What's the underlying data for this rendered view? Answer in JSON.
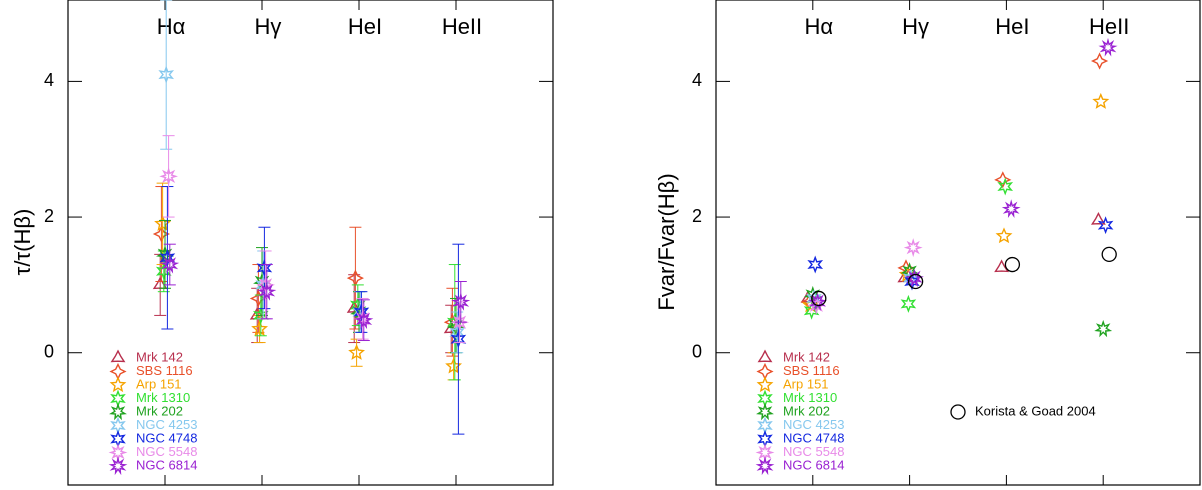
{
  "chart_data": [
    {
      "type": "scatter",
      "ylabel": "τ/τ(Hβ)",
      "categories": [
        "Hα",
        "Hγ",
        "HeI",
        "HeII"
      ],
      "ylim": [
        -1.95,
        5.2
      ],
      "yticks": [
        0,
        2,
        4
      ],
      "series": [
        {
          "name": "Mrk 142",
          "color": "#b8304e",
          "marker": "star3",
          "values": [
            1.0,
            0.55,
            0.65,
            0.35
          ],
          "errors": [
            0.45,
            0.4,
            0.5,
            0.35
          ]
        },
        {
          "name": "SBS 1116",
          "color": "#e8502a",
          "marker": "star4",
          "values": [
            1.75,
            0.8,
            1.1,
            0.45
          ],
          "errors": [
            0.7,
            0.5,
            0.75,
            0.5
          ]
        },
        {
          "name": "Arp 151",
          "color": "#f5a300",
          "marker": "star5",
          "values": [
            1.9,
            0.35,
            0.0,
            -0.2
          ],
          "errors": [
            0.6,
            0.2,
            0.2,
            0.2
          ]
        },
        {
          "name": "Mrk 1310",
          "color": "#33e033",
          "marker": "star6",
          "values": [
            1.2,
            0.55,
            0.7,
            0.45
          ],
          "errors": [
            0.3,
            0.3,
            0.3,
            0.85
          ]
        },
        {
          "name": "Mrk 202",
          "color": "#1fa21f",
          "marker": "star7",
          "values": [
            1.45,
            1.05,
            0.6,
            0.4
          ],
          "errors": [
            0.5,
            0.5,
            0.3,
            0.4
          ]
        },
        {
          "name": "NGC 4253",
          "color": "#86c8ee",
          "marker": "star6",
          "values": [
            4.1,
            1.0,
            0.6,
            0.3
          ],
          "errors": [
            1.1,
            0.5,
            0.3,
            0.3
          ]
        },
        {
          "name": "NGC 4748",
          "color": "#1428e0",
          "marker": "star6",
          "values": [
            1.4,
            1.25,
            0.6,
            0.2
          ],
          "errors": [
            1.05,
            0.6,
            0.3,
            1.4
          ]
        },
        {
          "name": "NGC 5548",
          "color": "#e88ae8",
          "marker": "star8",
          "values": [
            2.6,
            1.0,
            0.5,
            0.45
          ],
          "errors": [
            0.6,
            0.5,
            0.3,
            0.3
          ]
        },
        {
          "name": "NGC 6814",
          "color": "#9a22d2",
          "marker": "star9",
          "values": [
            1.3,
            0.9,
            0.48,
            0.75
          ],
          "errors": [
            0.3,
            0.4,
            0.3,
            0.3
          ]
        }
      ]
    },
    {
      "type": "scatter",
      "ylabel": "Fvar/Fvar(Hβ)",
      "categories": [
        "Hα",
        "Hγ",
        "HeI",
        "HeII"
      ],
      "ylim": [
        -1.95,
        5.2
      ],
      "yticks": [
        0,
        2,
        4
      ],
      "series": [
        {
          "name": "Mrk 142",
          "color": "#b8304e",
          "marker": "star3",
          "values": [
            0.8,
            1.1,
            1.25,
            1.95
          ]
        },
        {
          "name": "SBS 1116",
          "color": "#e8502a",
          "marker": "star4",
          "values": [
            0.75,
            1.25,
            2.55,
            4.3
          ]
        },
        {
          "name": "Arp 151",
          "color": "#f5a300",
          "marker": "star5",
          "values": [
            0.7,
            1.15,
            1.72,
            3.7
          ]
        },
        {
          "name": "Mrk 1310",
          "color": "#33e033",
          "marker": "star6",
          "values": [
            0.62,
            0.72,
            2.45,
            null
          ]
        },
        {
          "name": "Mrk 202",
          "color": "#1fa21f",
          "marker": "star7",
          "values": [
            0.85,
            1.2,
            null,
            0.35
          ]
        },
        {
          "name": "NGC 4253",
          "color": "#86c8ee",
          "marker": "star6",
          "values": [
            0.8,
            1.1,
            null,
            null
          ]
        },
        {
          "name": "NGC 4748",
          "color": "#1428e0",
          "marker": "star6",
          "values": [
            1.3,
            1.05,
            null,
            1.88
          ]
        },
        {
          "name": "NGC 5548",
          "color": "#e88ae8",
          "marker": "star8",
          "values": [
            0.7,
            1.55,
            null,
            null
          ]
        },
        {
          "name": "NGC 6814",
          "color": "#9a22d2",
          "marker": "star9",
          "values": [
            0.75,
            1.1,
            2.12,
            4.5
          ]
        },
        {
          "name": "Korista & Goad 2004",
          "color": "#000000",
          "marker": "circle",
          "values": [
            0.8,
            1.05,
            1.3,
            1.45
          ]
        }
      ]
    }
  ]
}
